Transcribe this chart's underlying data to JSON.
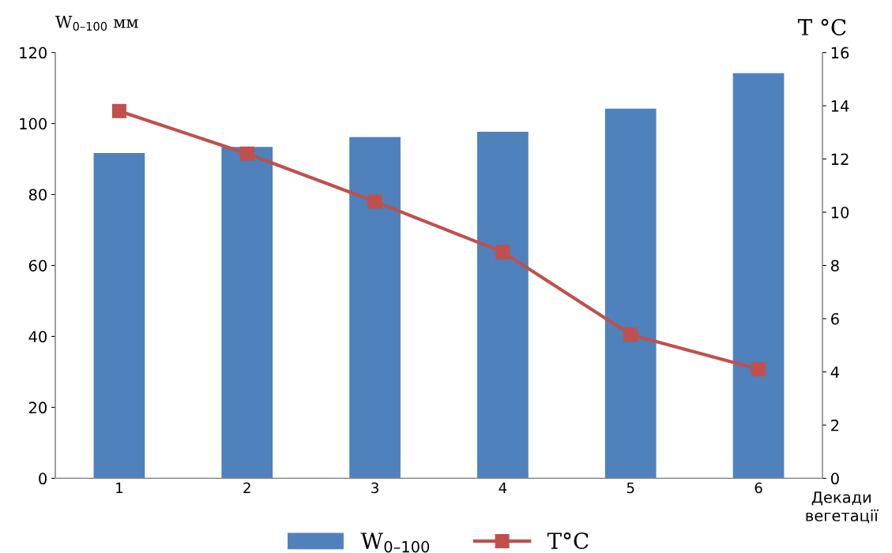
{
  "chart_data": {
    "type": "bar",
    "categories": [
      "1",
      "2",
      "3",
      "4",
      "5",
      "6"
    ],
    "series": [
      {
        "name": "W$_{0–100}$",
        "color": "#4f81bd",
        "values": [
          91.7,
          93.4,
          96.2,
          97.7,
          104.2,
          114.2
        ]
      },
      {
        "name": "T°C",
        "type": "line",
        "axis": "y2",
        "color": "#c0504d",
        "marker": "square",
        "values": [
          13.8,
          12.2,
          10.4,
          8.5,
          5.4,
          4.1
        ]
      }
    ],
    "ylabel": "W$_{0–100}$ мм",
    "y2label": "T °C",
    "xlabel": "Декади\nвегетації",
    "ylim": [
      0,
      120
    ],
    "yticks": [
      0,
      20,
      40,
      60,
      80,
      100,
      120
    ],
    "y2lim": [
      0,
      16
    ],
    "y2ticks": [
      0,
      2,
      4,
      6,
      8,
      10,
      12,
      14,
      16
    ],
    "legend": "bottom",
    "grid": false
  }
}
